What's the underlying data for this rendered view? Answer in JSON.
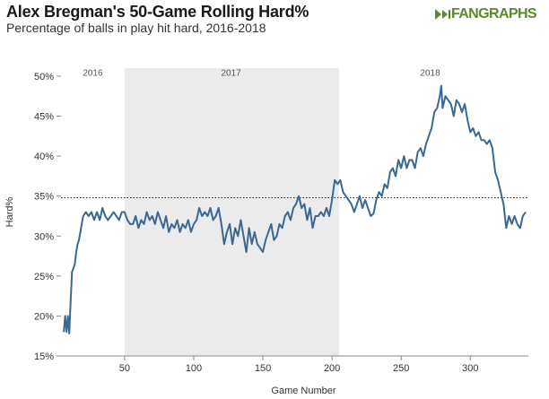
{
  "header": {
    "title": "Alex Bregman's 50-Game Rolling Hard%",
    "subtitle": "Percentage of balls in play hit hard, 2016-2018",
    "logo_text": "FANGRAPHS",
    "logo_icon": "fangraphs-leaf-icon"
  },
  "colors": {
    "line": "#3a6891",
    "shade": "#ebebeb",
    "reference_line": "#222222",
    "axis": "#888888",
    "logo": "#5a8a2b"
  },
  "chart_data": {
    "type": "line",
    "title": "Alex Bregman's 50-Game Rolling Hard%",
    "xlabel": "Game Number",
    "ylabel": "Hard%",
    "xlim": [
      4,
      342
    ],
    "ylim": [
      15,
      51
    ],
    "xticks": [
      50,
      100,
      150,
      200,
      250,
      300
    ],
    "yticks": [
      15,
      20,
      25,
      30,
      35,
      40,
      45,
      50
    ],
    "ytick_labels": [
      "15%",
      "20%",
      "25%",
      "30%",
      "35%",
      "40%",
      "45%",
      "50%"
    ],
    "grid": false,
    "reference_line": {
      "y": 34.8,
      "style": "dotted"
    },
    "shaded_region": {
      "x": [
        50,
        205
      ],
      "label": "2017"
    },
    "season_labels": [
      {
        "label": "2016",
        "x": 27,
        "y": 50.5
      },
      {
        "label": "2017",
        "x": 127,
        "y": 50.5
      },
      {
        "label": "2018",
        "x": 271,
        "y": 50.5
      }
    ],
    "series": [
      {
        "name": "50-Game Rolling Hard%",
        "x": [
          6,
          7,
          8,
          9,
          10,
          11,
          12,
          13,
          14,
          15,
          16,
          17,
          18,
          20,
          22,
          24,
          26,
          28,
          30,
          32,
          34,
          36,
          38,
          40,
          42,
          44,
          46,
          48,
          50,
          52,
          54,
          56,
          58,
          60,
          62,
          64,
          66,
          68,
          70,
          72,
          74,
          76,
          78,
          80,
          82,
          84,
          86,
          88,
          90,
          92,
          94,
          96,
          98,
          100,
          102,
          104,
          106,
          108,
          110,
          112,
          114,
          116,
          118,
          120,
          122,
          124,
          126,
          128,
          130,
          132,
          134,
          136,
          138,
          140,
          142,
          144,
          146,
          148,
          150,
          152,
          154,
          156,
          158,
          160,
          162,
          164,
          166,
          168,
          170,
          172,
          174,
          176,
          178,
          180,
          182,
          184,
          186,
          188,
          190,
          192,
          194,
          196,
          198,
          200,
          202,
          204,
          206,
          208,
          210,
          212,
          214,
          216,
          218,
          220,
          222,
          224,
          226,
          228,
          230,
          232,
          234,
          236,
          238,
          240,
          242,
          244,
          246,
          248,
          250,
          252,
          254,
          256,
          258,
          260,
          262,
          264,
          266,
          268,
          270,
          272,
          274,
          276,
          278,
          279,
          280,
          282,
          284,
          286,
          288,
          290,
          292,
          294,
          296,
          298,
          300,
          302,
          304,
          306,
          308,
          310,
          312,
          314,
          316,
          318,
          320,
          322,
          324,
          326,
          328,
          330,
          332,
          334,
          336,
          338,
          340
        ],
        "values": [
          18.0,
          20.0,
          18.0,
          20.0,
          17.8,
          22.0,
          25.5,
          26.0,
          26.5,
          28.0,
          29.0,
          29.5,
          30.5,
          32.5,
          33.0,
          32.5,
          33.0,
          32.0,
          33.0,
          32.0,
          33.5,
          32.5,
          32.0,
          32.5,
          33.0,
          32.5,
          32.0,
          33.0,
          33.0,
          32.0,
          31.5,
          31.5,
          32.5,
          31.0,
          32.0,
          31.5,
          33.0,
          32.0,
          32.5,
          31.5,
          33.0,
          32.0,
          31.0,
          32.5,
          30.5,
          31.5,
          31.0,
          32.0,
          30.5,
          31.5,
          31.0,
          32.0,
          30.5,
          31.5,
          32.0,
          33.5,
          32.5,
          33.0,
          32.5,
          33.5,
          32.0,
          32.5,
          33.5,
          31.5,
          29.0,
          30.5,
          31.5,
          29.0,
          31.0,
          30.0,
          32.0,
          30.0,
          28.0,
          31.0,
          29.0,
          30.5,
          29.0,
          28.5,
          28.0,
          29.5,
          30.5,
          31.5,
          29.5,
          30.0,
          31.5,
          31.0,
          32.5,
          33.0,
          32.0,
          33.5,
          34.0,
          35.0,
          33.5,
          34.0,
          32.0,
          33.5,
          31.0,
          32.5,
          32.5,
          33.0,
          32.5,
          33.5,
          32.5,
          34.5,
          37.0,
          36.5,
          37.0,
          35.5,
          35.0,
          34.5,
          34.0,
          33.0,
          34.0,
          35.0,
          33.5,
          34.5,
          33.5,
          32.5,
          32.8,
          34.5,
          35.5,
          35.0,
          36.5,
          36.0,
          38.0,
          38.5,
          37.5,
          39.5,
          38.5,
          40.0,
          38.5,
          39.5,
          39.5,
          38.5,
          40.5,
          41.0,
          40.0,
          41.5,
          42.5,
          43.5,
          45.5,
          46.0,
          47.5,
          48.8,
          46.0,
          47.5,
          47.0,
          46.5,
          45.0,
          47.0,
          46.5,
          45.5,
          46.5,
          44.5,
          43.0,
          43.5,
          42.5,
          43.0,
          42.0,
          42.0,
          41.5,
          42.0,
          41.0,
          38.0,
          37.0,
          35.5,
          34.0,
          31.0,
          32.5,
          31.5,
          32.5,
          31.5,
          31.0,
          32.5,
          33.0
        ]
      }
    ]
  }
}
